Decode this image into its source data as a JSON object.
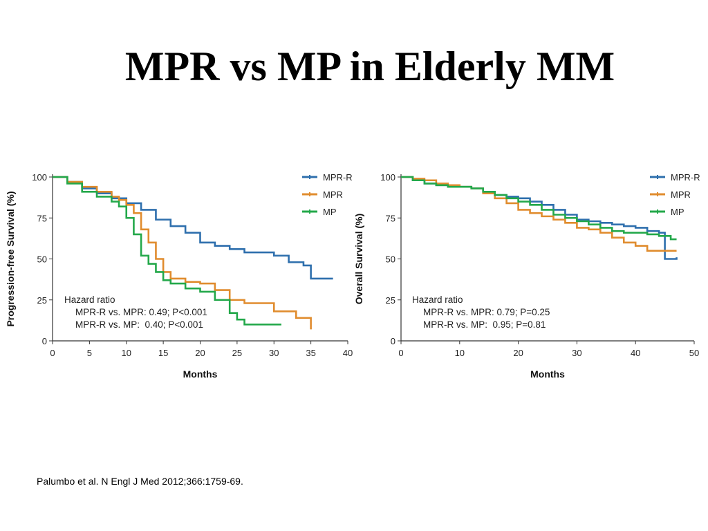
{
  "title": "MPR vs MP in Elderly MM",
  "citation": "Palumbo et al. N Engl J Med 2012;366:1759-69.",
  "colors": {
    "MPR-R": "#2e6fad",
    "MPR": "#e08c2e",
    "MP": "#23a84a"
  },
  "chart_data": [
    {
      "type": "line",
      "xlabel": "Months",
      "ylabel": "Progression-free Survival (%)",
      "xlim": [
        0,
        40
      ],
      "ylim": [
        0,
        100
      ],
      "xticks": [
        0,
        5,
        10,
        15,
        20,
        25,
        30,
        35,
        40
      ],
      "yticks": [
        0,
        25,
        50,
        75,
        100
      ],
      "legend": "top-right",
      "annotation": {
        "heading": "Hazard ratio",
        "lines": [
          "MPR-R vs. MPR: 0.49; P<0.001",
          "MPR-R vs. MP:  0.40; P<0.001"
        ]
      },
      "series": [
        {
          "name": "MPR-R",
          "x": [
            0,
            2,
            4,
            6,
            8,
            10,
            12,
            14,
            16,
            18,
            20,
            22,
            24,
            26,
            28,
            30,
            32,
            34,
            35,
            38
          ],
          "y": [
            100,
            97,
            93,
            90,
            87,
            84,
            80,
            74,
            70,
            66,
            60,
            58,
            56,
            54,
            54,
            52,
            48,
            46,
            38,
            38
          ]
        },
        {
          "name": "MPR",
          "x": [
            0,
            2,
            4,
            6,
            8,
            9,
            10,
            11,
            12,
            13,
            14,
            15,
            16,
            18,
            20,
            22,
            24,
            26,
            28,
            30,
            31,
            33,
            35,
            35
          ],
          "y": [
            100,
            97,
            94,
            91,
            88,
            86,
            83,
            78,
            68,
            60,
            50,
            42,
            38,
            36,
            35,
            31,
            25,
            23,
            23,
            18,
            18,
            14,
            13,
            7
          ]
        },
        {
          "name": "MP",
          "x": [
            0,
            2,
            4,
            6,
            8,
            9,
            10,
            11,
            12,
            13,
            14,
            15,
            16,
            18,
            20,
            22,
            24,
            25,
            26,
            28,
            30,
            31
          ],
          "y": [
            100,
            96,
            91,
            88,
            85,
            82,
            75,
            65,
            52,
            47,
            42,
            37,
            35,
            32,
            30,
            25,
            17,
            13,
            10,
            10,
            10,
            10
          ]
        }
      ]
    },
    {
      "type": "line",
      "xlabel": "Months",
      "ylabel": "Overall Survival (%)",
      "xlim": [
        0,
        50
      ],
      "ylim": [
        0,
        100
      ],
      "xticks": [
        0,
        10,
        20,
        30,
        40,
        50
      ],
      "yticks": [
        0,
        25,
        50,
        75,
        100
      ],
      "legend": "top-right",
      "annotation": {
        "heading": "Hazard ratio",
        "lines": [
          "MPR-R vs. MPR: 0.79; P=0.25",
          "MPR-R vs. MP:  0.95; P=0.81"
        ]
      },
      "series": [
        {
          "name": "MPR-R",
          "x": [
            0,
            2,
            4,
            6,
            8,
            10,
            12,
            14,
            16,
            18,
            20,
            22,
            24,
            26,
            28,
            30,
            32,
            34,
            36,
            38,
            40,
            42,
            44,
            45,
            45,
            47
          ],
          "y": [
            100,
            98,
            96,
            95,
            94,
            94,
            93,
            91,
            89,
            88,
            87,
            85,
            83,
            80,
            77,
            74,
            73,
            72,
            71,
            70,
            69,
            67,
            66,
            66,
            50,
            51
          ]
        },
        {
          "name": "MPR",
          "x": [
            0,
            2,
            4,
            6,
            8,
            10,
            12,
            14,
            16,
            18,
            20,
            22,
            24,
            26,
            28,
            30,
            32,
            34,
            36,
            38,
            40,
            42,
            44,
            46,
            47
          ],
          "y": [
            100,
            99,
            98,
            96,
            95,
            94,
            93,
            90,
            87,
            84,
            80,
            78,
            76,
            74,
            72,
            69,
            68,
            66,
            63,
            60,
            58,
            55,
            55,
            55,
            55
          ]
        },
        {
          "name": "MP",
          "x": [
            0,
            2,
            4,
            6,
            8,
            10,
            12,
            14,
            16,
            18,
            20,
            22,
            24,
            26,
            28,
            30,
            32,
            34,
            36,
            38,
            40,
            42,
            44,
            46,
            47
          ],
          "y": [
            100,
            98,
            96,
            95,
            94,
            94,
            93,
            91,
            89,
            87,
            85,
            83,
            80,
            77,
            75,
            73,
            71,
            69,
            67,
            66,
            66,
            65,
            64,
            62,
            62
          ]
        }
      ]
    }
  ]
}
